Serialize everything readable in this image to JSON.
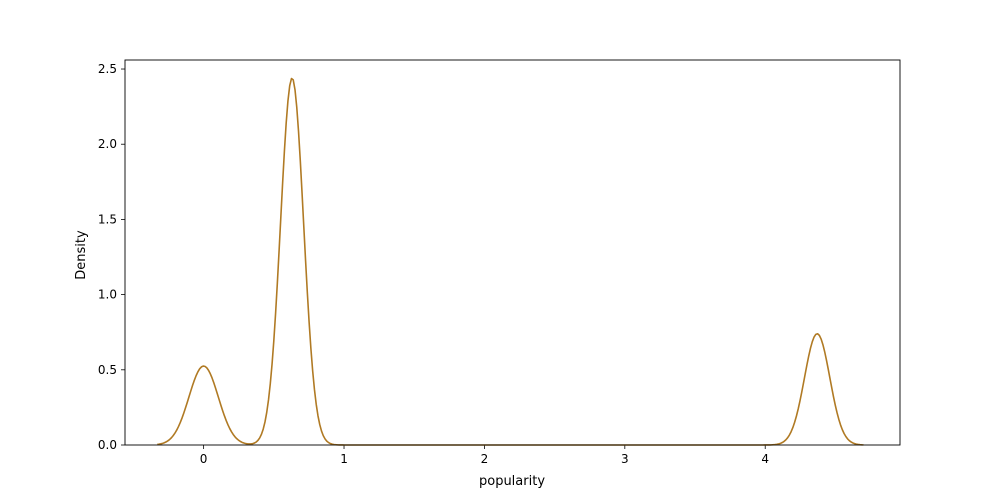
{
  "chart_data": {
    "type": "line",
    "title": "",
    "xlabel": "popularity",
    "ylabel": "Density",
    "xlim": [
      -0.56,
      4.96
    ],
    "ylim": [
      0,
      2.56
    ],
    "x_ticks": [
      {
        "value": 0,
        "label": "0"
      },
      {
        "value": 1,
        "label": "1"
      },
      {
        "value": 2,
        "label": "2"
      },
      {
        "value": 3,
        "label": "3"
      },
      {
        "value": 4,
        "label": "4"
      }
    ],
    "y_ticks": [
      {
        "value": 0.0,
        "label": "0.0"
      },
      {
        "value": 0.5,
        "label": "0.5"
      },
      {
        "value": 1.0,
        "label": "1.0"
      },
      {
        "value": 1.5,
        "label": "1.5"
      },
      {
        "value": 2.0,
        "label": "2.0"
      },
      {
        "value": 2.5,
        "label": "2.5"
      }
    ],
    "grid": false,
    "legend": "none",
    "series": [
      {
        "color": "#b07a24",
        "x_range": [
          -0.33,
          4.7
        ],
        "components": [
          {
            "center": 0.0,
            "peak": 0.525,
            "sd": 0.105
          },
          {
            "center": 0.63,
            "peak": 2.44,
            "sd": 0.082
          },
          {
            "center": 4.37,
            "peak": 0.74,
            "sd": 0.09
          }
        ]
      }
    ]
  }
}
